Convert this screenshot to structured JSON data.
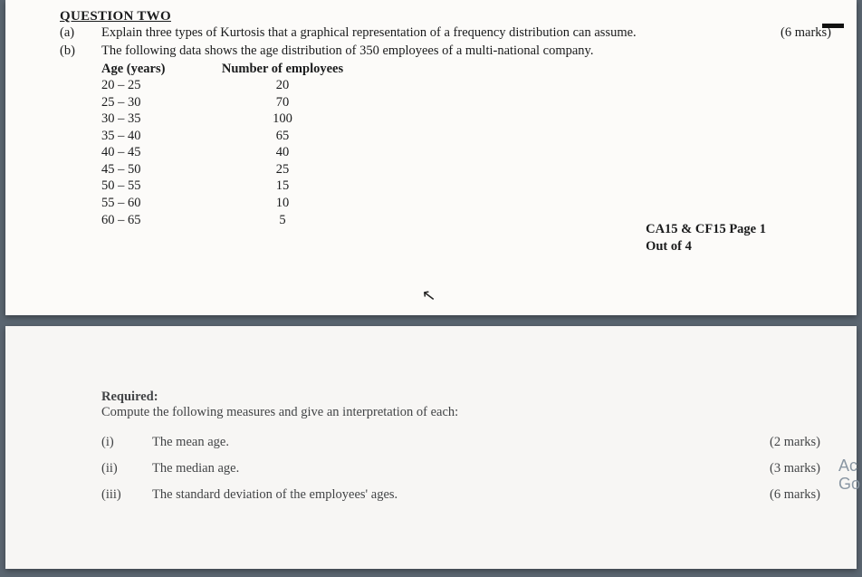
{
  "question": {
    "title": "QUESTION TWO",
    "a": {
      "label": "(a)",
      "text": "Explain three types of Kurtosis that a graphical representation of a frequency distribution can assume.",
      "marks": "(6 marks)"
    },
    "b": {
      "label": "(b)",
      "text": "The following data shows the age distribution of 350 employees of a multi-national company."
    }
  },
  "table": {
    "headers": {
      "c1": "Age (years)",
      "c2": "Number of employees"
    },
    "rows": [
      {
        "age": "20 – 25",
        "n": "20"
      },
      {
        "age": "25 – 30",
        "n": "70"
      },
      {
        "age": "30 – 35",
        "n": "100"
      },
      {
        "age": "35 – 40",
        "n": "65"
      },
      {
        "age": "40 – 45",
        "n": "40"
      },
      {
        "age": "45 – 50",
        "n": "25"
      },
      {
        "age": "50 – 55",
        "n": "15"
      },
      {
        "age": "55 – 60",
        "n": "10"
      },
      {
        "age": "60 – 65",
        "n": "5"
      }
    ]
  },
  "footer": {
    "line1": "CA15 & CF15 Page 1",
    "line2": "Out of 4"
  },
  "required": {
    "heading": "Required:",
    "intro": "Compute the following measures and give an interpretation of each:",
    "items": [
      {
        "label": "(i)",
        "text": "The mean age.",
        "marks": "(2 marks)"
      },
      {
        "label": "(ii)",
        "text": "The median age.",
        "marks": "(3 marks)"
      },
      {
        "label": "(iii)",
        "text": "The standard deviation of the employees' ages.",
        "marks": "(6 marks)"
      }
    ]
  },
  "side": {
    "l1": "Ac",
    "l2": "Go"
  },
  "colors": {
    "page_bg": "#fcfbf9",
    "desk_bg": "#5a6570",
    "text": "#1a1b1c"
  }
}
